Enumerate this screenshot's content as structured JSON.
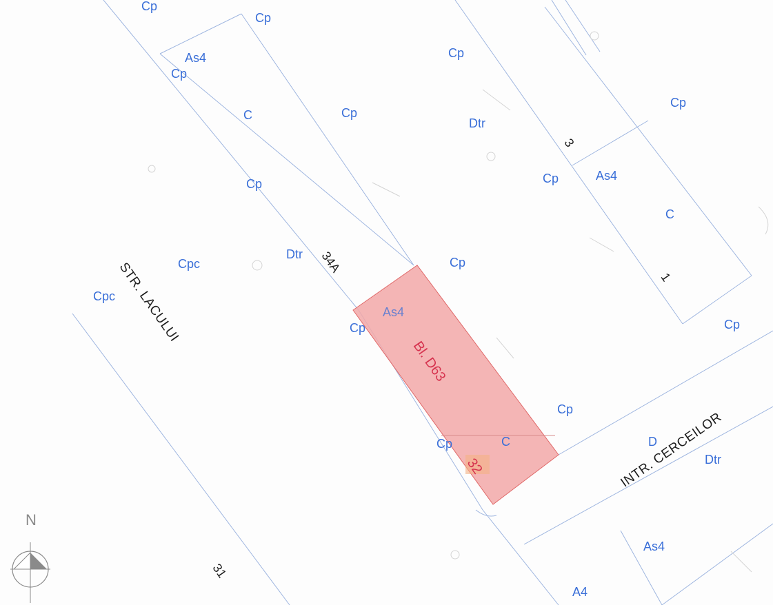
{
  "map": {
    "streets": {
      "str_lacului": "STR. LACULUI",
      "intr_cerceilor": "INTR. CERCEILOR"
    },
    "highlight": {
      "label": "Bl. D63",
      "number": "32",
      "fill": "#f2a8a8",
      "stroke": "#e06a6a"
    },
    "numbers": {
      "n34a": "34A",
      "n31": "31",
      "n3": "3",
      "n1": "1"
    },
    "zones": {
      "cp_01": "Cp",
      "cp_02": "Cp",
      "cp_03": "Cp",
      "cp_04": "Cp",
      "cp_05": "Cp",
      "cp_06": "Cp",
      "cp_07": "Cp",
      "cp_08": "Cp",
      "cp_09": "Cp",
      "cp_10": "Cp",
      "cp_11": "Cp",
      "cp_12": "Cp",
      "cp_13": "Cp",
      "cpc_1": "Cpc",
      "cpc_2": "Cpc",
      "as4_1": "As4",
      "as4_2": "As4",
      "as4_3": "As4",
      "as4_4": "As4",
      "c_1": "C",
      "c_2": "C",
      "c_3": "C",
      "dtr_1": "Dtr",
      "dtr_2": "Dtr",
      "dtr_3": "Dtr",
      "a4_1": "A4",
      "d_partial": "D"
    },
    "colors": {
      "zone_label": "#3a6fd8",
      "line": "#9fb6e0",
      "street_text": "#1f1f1f"
    }
  },
  "compass": {
    "letter": "N"
  }
}
